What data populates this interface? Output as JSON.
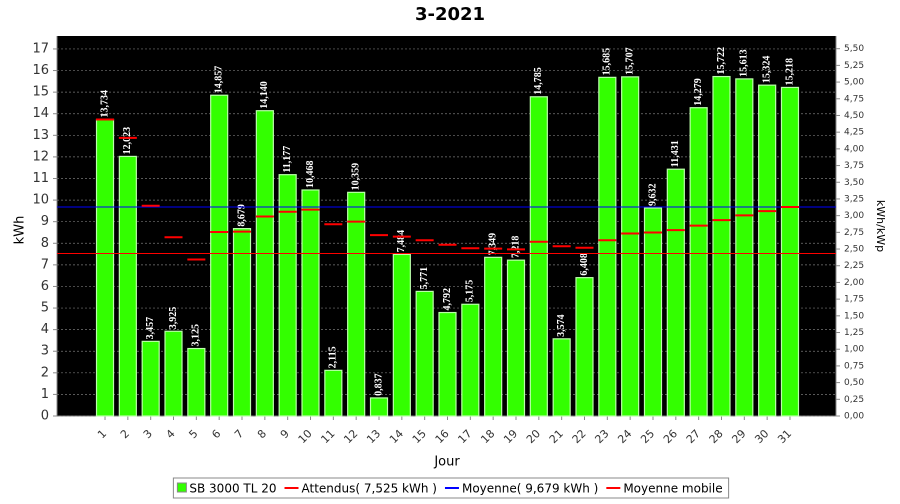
{
  "chart_data": {
    "type": "bar",
    "title": "3-2021",
    "x_label": "Jour",
    "y_label": "kWh",
    "y2_label": "kWh/kWp",
    "categories": [
      "1",
      "2",
      "3",
      "4",
      "5",
      "6",
      "7",
      "8",
      "9",
      "10",
      "11",
      "12",
      "13",
      "14",
      "15",
      "16",
      "17",
      "18",
      "19",
      "20",
      "21",
      "22",
      "23",
      "24",
      "25",
      "26",
      "27",
      "28",
      "29",
      "30",
      "31"
    ],
    "series": [
      {
        "name": "SB 3000 TL 20",
        "type": "bar",
        "color": "#33ff00",
        "values": [
          13.734,
          12.023,
          3.457,
          3.925,
          3.125,
          14.857,
          8.679,
          14.14,
          11.177,
          10.468,
          2.115,
          10.359,
          0.837,
          7.484,
          5.771,
          4.792,
          5.175,
          7.349,
          7.218,
          14.785,
          3.574,
          6.408,
          15.685,
          15.707,
          9.632,
          11.431,
          14.279,
          15.722,
          15.613,
          15.324,
          15.218
        ],
        "value_labels": [
          "13,734",
          "12,023",
          "3,457",
          "3,925",
          "3,125",
          "14,857",
          "8,679",
          "14,140",
          "11,177",
          "10,468",
          "2,115",
          "10,359",
          "0,837",
          "7,484",
          "5,771",
          "4,792",
          "5,175",
          "7,349",
          "7,218",
          "14,785",
          "3,574",
          "6,408",
          "15,685",
          "15,707",
          "9,632",
          "11,431",
          "14,279",
          "15,722",
          "15,613",
          "15,324",
          "15,218"
        ]
      },
      {
        "name": "Attendus( 7,525 kWh )",
        "type": "hline",
        "color": "#ff0000",
        "value": 7.525
      },
      {
        "name": "Moyenne( 9,679 kWh )",
        "type": "hline",
        "color": "#0000ff",
        "value": 9.679
      },
      {
        "name": "Moyenne mobile",
        "type": "step",
        "color": "#ff0000",
        "values": [
          13.73,
          12.88,
          9.74,
          8.28,
          7.25,
          8.52,
          8.54,
          9.24,
          9.46,
          9.56,
          8.88,
          9.0,
          8.38,
          8.31,
          8.14,
          7.93,
          7.77,
          7.75,
          7.72,
          8.07,
          7.86,
          7.79,
          8.14,
          8.45,
          8.5,
          8.61,
          8.82,
          9.07,
          9.29,
          9.49,
          9.68
        ]
      }
    ],
    "ylim": [
      0,
      17.6
    ],
    "yticks": [
      0,
      1,
      2,
      3,
      4,
      5,
      6,
      7,
      8,
      9,
      10,
      11,
      12,
      13,
      14,
      15,
      16,
      17
    ],
    "y2lim": [
      0,
      5.69
    ],
    "y2ticks": [
      {
        "value": 0,
        "label": "0,00"
      },
      {
        "value": 0.25,
        "label": "0,25"
      },
      {
        "value": 0.5,
        "label": "0,50"
      },
      {
        "value": 0.75,
        "label": "0,75"
      },
      {
        "value": 1,
        "label": "1,00"
      },
      {
        "value": 1.25,
        "label": "1,25"
      },
      {
        "value": 1.5,
        "label": "1,50"
      },
      {
        "value": 1.75,
        "label": "1,75"
      },
      {
        "value": 2,
        "label": "2,00"
      },
      {
        "value": 2.25,
        "label": "2,25"
      },
      {
        "value": 2.5,
        "label": "2,50"
      },
      {
        "value": 2.75,
        "label": "2,75"
      },
      {
        "value": 3,
        "label": "3,00"
      },
      {
        "value": 3.25,
        "label": "3,25"
      },
      {
        "value": 3.5,
        "label": "3,50"
      },
      {
        "value": 3.75,
        "label": "3,75"
      },
      {
        "value": 4,
        "label": "4,00"
      },
      {
        "value": 4.25,
        "label": "4,25"
      },
      {
        "value": 4.5,
        "label": "4,50"
      },
      {
        "value": 4.75,
        "label": "4,75"
      },
      {
        "value": 5,
        "label": "5,00"
      },
      {
        "value": 5.25,
        "label": "5,25"
      },
      {
        "value": 5.5,
        "label": "5,50"
      }
    ],
    "grid": true,
    "legend": "bottom"
  }
}
